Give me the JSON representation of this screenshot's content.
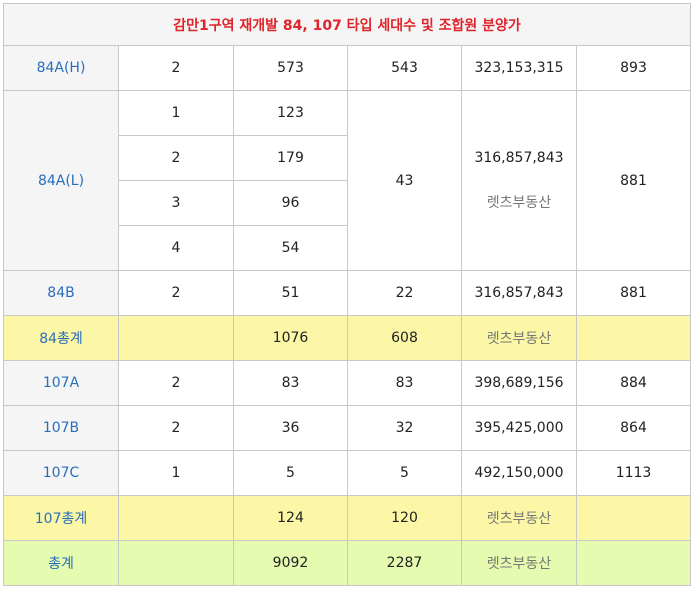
{
  "title": "감만1구역 재개발 84, 107 타입 세대수 및 조합원 분양가",
  "watermark": "렛츠부동산",
  "rows": {
    "r84ah": {
      "type": "84A(H)",
      "c1": "2",
      "c2": "573",
      "c3": "543",
      "c4": "323,153,315",
      "c5": "893"
    },
    "r84al": {
      "type": "84A(L)",
      "sub": [
        {
          "c1": "1",
          "c2": "123"
        },
        {
          "c1": "2",
          "c2": "179"
        },
        {
          "c1": "3",
          "c2": "96"
        },
        {
          "c1": "4",
          "c2": "54"
        }
      ],
      "c3": "43",
      "c4": "316,857,843",
      "c5": "881"
    },
    "r84b": {
      "type": "84B",
      "c1": "2",
      "c2": "51",
      "c3": "22",
      "c4": "316,857,843",
      "c5": "881"
    },
    "sum84": {
      "type": "84총계",
      "c2": "1076",
      "c3": "608"
    },
    "r107a": {
      "type": "107A",
      "c1": "2",
      "c2": "83",
      "c3": "83",
      "c4": "398,689,156",
      "c5": "884"
    },
    "r107b": {
      "type": "107B",
      "c1": "2",
      "c2": "36",
      "c3": "32",
      "c4": "395,425,000",
      "c5": "864"
    },
    "r107c": {
      "type": "107C",
      "c1": "1",
      "c2": "5",
      "c3": "5",
      "c4": "492,150,000",
      "c5": "1113"
    },
    "sum107": {
      "type": "107총계",
      "c2": "124",
      "c3": "120"
    },
    "total": {
      "type": "총계",
      "c2": "9092",
      "c3": "2287"
    }
  },
  "colors": {
    "title": "#e0242b",
    "type_text": "#2a6ebb",
    "subtotal_bg": "#fbf7a6",
    "total_bg": "#e4fbb0",
    "header_bg": "#f5f5f5"
  }
}
